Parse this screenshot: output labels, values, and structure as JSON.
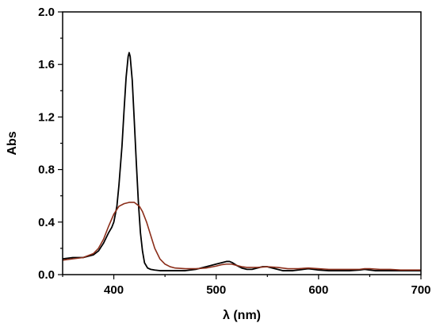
{
  "chart_data": {
    "type": "line",
    "title": "",
    "xlabel": "λ (nm)",
    "ylabel": "Abs",
    "xlim": [
      350,
      700
    ],
    "ylim": [
      0.0,
      2.0
    ],
    "x_ticks": [
      400,
      500,
      600,
      700
    ],
    "x_tick_labels": [
      "400",
      "500",
      "600",
      "700"
    ],
    "x_minor_ticks": [
      350,
      450,
      550,
      650
    ],
    "y_ticks": [
      0.0,
      0.4,
      0.8,
      1.2,
      1.6,
      2.0
    ],
    "y_tick_labels": [
      "0.0",
      "0.4",
      "0.8",
      "1.2",
      "1.6",
      "2.0"
    ],
    "y_minor_ticks": [
      0.2,
      0.6,
      1.0,
      1.4,
      1.8
    ],
    "grid": false,
    "legend": "none",
    "series": [
      {
        "color": "#000000",
        "x": [
          350,
          360,
          370,
          380,
          385,
          390,
          395,
          398,
          400,
          403,
          405,
          408,
          410,
          412,
          414,
          415,
          416,
          418,
          420,
          422,
          424,
          426,
          428,
          430,
          433,
          436,
          440,
          445,
          450,
          460,
          470,
          480,
          490,
          500,
          505,
          510,
          513,
          516,
          520,
          525,
          530,
          535,
          540,
          545,
          550,
          555,
          560,
          565,
          570,
          575,
          580,
          585,
          590,
          595,
          600,
          610,
          620,
          630,
          640,
          645,
          650,
          655,
          660,
          670,
          680,
          690,
          700
        ],
        "y": [
          0.12,
          0.13,
          0.13,
          0.15,
          0.18,
          0.24,
          0.32,
          0.36,
          0.4,
          0.52,
          0.68,
          0.98,
          1.25,
          1.5,
          1.66,
          1.69,
          1.66,
          1.48,
          1.17,
          0.85,
          0.55,
          0.32,
          0.18,
          0.09,
          0.05,
          0.04,
          0.035,
          0.03,
          0.03,
          0.03,
          0.03,
          0.04,
          0.06,
          0.08,
          0.09,
          0.1,
          0.1,
          0.09,
          0.07,
          0.05,
          0.04,
          0.04,
          0.05,
          0.06,
          0.06,
          0.05,
          0.04,
          0.03,
          0.03,
          0.03,
          0.035,
          0.04,
          0.045,
          0.04,
          0.035,
          0.03,
          0.03,
          0.03,
          0.035,
          0.04,
          0.035,
          0.03,
          0.03,
          0.03,
          0.03,
          0.03,
          0.03
        ]
      },
      {
        "color": "#8b2e1a",
        "x": [
          350,
          360,
          370,
          380,
          385,
          390,
          395,
          400,
          405,
          410,
          415,
          420,
          425,
          428,
          432,
          436,
          440,
          445,
          450,
          455,
          460,
          470,
          480,
          490,
          500,
          505,
          510,
          515,
          520,
          525,
          530,
          540,
          550,
          560,
          570,
          580,
          590,
          600,
          610,
          620,
          630,
          640,
          645,
          650,
          660,
          670,
          680,
          690,
          700
        ],
        "y": [
          0.11,
          0.12,
          0.13,
          0.16,
          0.2,
          0.27,
          0.37,
          0.46,
          0.52,
          0.54,
          0.55,
          0.55,
          0.52,
          0.48,
          0.4,
          0.3,
          0.2,
          0.12,
          0.08,
          0.06,
          0.05,
          0.045,
          0.045,
          0.05,
          0.065,
          0.075,
          0.08,
          0.08,
          0.07,
          0.06,
          0.055,
          0.055,
          0.06,
          0.055,
          0.045,
          0.045,
          0.05,
          0.045,
          0.04,
          0.04,
          0.04,
          0.04,
          0.045,
          0.045,
          0.04,
          0.04,
          0.035,
          0.035,
          0.035
        ]
      }
    ]
  }
}
